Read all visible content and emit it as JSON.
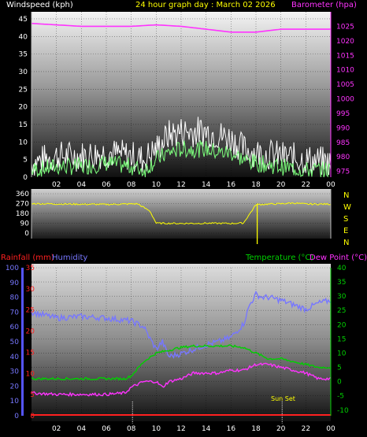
{
  "header": {
    "windspeed_label": "Windspeed (kph)",
    "title": "24 hour graph day : March 02 2026",
    "barometer_label": "Barometer (hpa)"
  },
  "mid_header": {
    "rainfall_label": "Rainfall (mm)",
    "humidity_label": "Humidity",
    "temperature_label": "Temperature (°C)",
    "dewpoint_label": "Dew Point (°C)"
  },
  "direction_labels": [
    "N",
    "W",
    "S",
    "E",
    "N"
  ],
  "sunset_label": "Sun Set",
  "colors": {
    "wind_gust": "#ffffff",
    "wind_avg": "#7cff7c",
    "barometer": "#ff33ff",
    "direction": "#ffff00",
    "humidity": "#7777ff",
    "temperature": "#00d000",
    "dewpoint": "#ff33ff",
    "rainfall": "#ff2020",
    "rain_axis": "#5555ff"
  },
  "chart_data": [
    {
      "type": "line",
      "title": "24 hour graph day : March 02 2026",
      "x_ticks": [
        "02",
        "04",
        "06",
        "08",
        "10",
        "12",
        "14",
        "16",
        "18",
        "20",
        "22",
        "00"
      ],
      "y_left_label": "Windspeed (kph)",
      "y_left_ticks": [
        0,
        5,
        10,
        15,
        20,
        25,
        30,
        35,
        40,
        45
      ],
      "y_left_range": [
        0,
        47
      ],
      "y_right_label": "Barometer (hpa)",
      "y_right_ticks": [
        975,
        980,
        985,
        990,
        995,
        1000,
        1005,
        1010,
        1015,
        1020,
        1025
      ],
      "y_right_range": [
        973,
        1030
      ],
      "series": [
        {
          "name": "Barometer",
          "axis": "right",
          "x": [
            0,
            2,
            4,
            6,
            8,
            10,
            12,
            14,
            16,
            18,
            20,
            22,
            24
          ],
          "values": [
            1026,
            1025.5,
            1025,
            1025,
            1025,
            1025.5,
            1025,
            1024,
            1023,
            1023,
            1024,
            1024,
            1024
          ]
        },
        {
          "name": "Wind Gust",
          "axis": "left",
          "x": [
            0,
            2,
            4,
            6,
            8,
            9,
            10,
            11,
            12,
            13,
            14,
            15,
            16,
            17,
            18,
            20,
            22,
            24
          ],
          "values": [
            4,
            6,
            6,
            7,
            6,
            5,
            8,
            12,
            13,
            13,
            13,
            12,
            11,
            8,
            7,
            6,
            5,
            4
          ]
        },
        {
          "name": "Wind Average",
          "axis": "left",
          "x": [
            0,
            2,
            4,
            6,
            8,
            9,
            10,
            11,
            12,
            13,
            14,
            15,
            16,
            17,
            18,
            20,
            22,
            24
          ],
          "values": [
            2,
            3,
            3,
            4,
            3,
            2,
            5,
            7,
            8,
            8,
            8,
            7,
            7,
            5,
            4,
            3,
            2,
            2
          ]
        }
      ]
    },
    {
      "type": "line",
      "y_left_ticks": [
        0,
        90,
        180,
        270,
        360
      ],
      "y_left_range": [
        0,
        360
      ],
      "series": [
        {
          "name": "Wind Direction",
          "x": [
            0,
            3,
            6,
            8.5,
            9.5,
            10,
            12,
            14,
            16,
            17,
            18,
            19,
            20,
            21,
            22,
            24
          ],
          "values": [
            270,
            265,
            262,
            268,
            200,
            90,
            88,
            90,
            88,
            92,
            260,
            265,
            268,
            275,
            265,
            265
          ]
        }
      ]
    },
    {
      "type": "line",
      "x_ticks": [
        "02",
        "04",
        "06",
        "08",
        "10",
        "12",
        "14",
        "16",
        "18",
        "20",
        "22",
        "00"
      ],
      "y_left_label": "Rainfall (mm)",
      "y_left_ticks": [
        0,
        5,
        10,
        15,
        20,
        25,
        30,
        35
      ],
      "y_humidity_ticks": [
        0,
        10,
        20,
        30,
        40,
        50,
        60,
        70,
        80,
        90,
        100
      ],
      "y_right_label": "Temperature (°C)",
      "y_right_ticks": [
        -10,
        -5,
        0,
        5,
        10,
        15,
        20,
        25,
        30,
        35,
        40
      ],
      "y_right_range": [
        -12,
        40
      ],
      "series": [
        {
          "name": "Humidity",
          "axis": "humidity",
          "x": [
            0,
            2,
            4,
            6,
            8,
            9,
            9.5,
            10,
            10.5,
            11,
            12,
            13,
            14,
            15,
            16,
            17,
            17.5,
            18,
            18.5,
            19,
            20,
            21,
            22,
            23,
            24
          ],
          "values": [
            70,
            66,
            67,
            66,
            64,
            60,
            52,
            45,
            50,
            40,
            42,
            45,
            48,
            50,
            53,
            62,
            75,
            82,
            80,
            80,
            78,
            75,
            72,
            76,
            78
          ]
        },
        {
          "name": "Temperature",
          "axis": "right",
          "x": [
            0,
            2,
            4,
            6,
            7.5,
            8,
            9,
            10,
            11,
            12,
            13,
            14,
            15,
            16,
            17,
            18,
            19,
            20,
            21,
            22,
            23,
            24
          ],
          "values": [
            1,
            1,
            1,
            1,
            1,
            2,
            7,
            10,
            11,
            12,
            12.5,
            12.5,
            12.5,
            12.5,
            12,
            10,
            8,
            8,
            7,
            6,
            5,
            5
          ]
        },
        {
          "name": "Dew Point",
          "axis": "right",
          "x": [
            0,
            2,
            4,
            6,
            7.5,
            8,
            9,
            10,
            10.5,
            11,
            12,
            13,
            14,
            15,
            16,
            17,
            18,
            19,
            20,
            21,
            22,
            23,
            24
          ],
          "values": [
            -4,
            -4.5,
            -4.5,
            -4.5,
            -4,
            -2,
            0,
            0,
            -2,
            0,
            1,
            3,
            3,
            3,
            4,
            4,
            6,
            6,
            5,
            4,
            3,
            1,
            1
          ]
        },
        {
          "name": "Rainfall",
          "axis": "left",
          "x": [
            0,
            24
          ],
          "values": [
            0,
            0
          ]
        }
      ]
    }
  ]
}
